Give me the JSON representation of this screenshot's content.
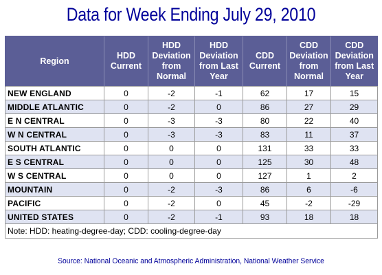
{
  "title": "Data for Week Ending July 29, 2010",
  "table": {
    "headers": [
      "Region",
      "HDD Current",
      "HDD Deviation from Normal",
      "HDD Deviation from Last Year",
      "CDD Current",
      "CDD Deviation from Normal",
      "CDD Deviation from Last Year"
    ],
    "rows": [
      [
        "NEW ENGLAND",
        "0",
        "-2",
        "-1",
        "62",
        "17",
        "15"
      ],
      [
        "MIDDLE ATLANTIC",
        "0",
        "-2",
        "0",
        "86",
        "27",
        "29"
      ],
      [
        "E N CENTRAL",
        "0",
        "-3",
        "-3",
        "80",
        "22",
        "40"
      ],
      [
        "W N CENTRAL",
        "0",
        "-3",
        "-3",
        "83",
        "11",
        "37"
      ],
      [
        "SOUTH ATLANTIC",
        "0",
        "0",
        "0",
        "131",
        "33",
        "33"
      ],
      [
        "E S CENTRAL",
        "0",
        "0",
        "0",
        "125",
        "30",
        "48"
      ],
      [
        "W S CENTRAL",
        "0",
        "0",
        "0",
        "127",
        "1",
        "2"
      ],
      [
        "MOUNTAIN",
        "0",
        "-2",
        "-3",
        "86",
        "6",
        "-6"
      ],
      [
        "PACIFIC",
        "0",
        "-2",
        "0",
        "45",
        "-2",
        "-29"
      ],
      [
        "UNITED STATES",
        "0",
        "-2",
        "-1",
        "93",
        "18",
        "18"
      ]
    ],
    "note": "Note: HDD: heating-degree-day; CDD: cooling-degree-day"
  },
  "source": "Source:  National Oceanic and Atmospheric Administration, National Weather Service",
  "colors": {
    "title": "#000099",
    "header_bg": "#5b5e96",
    "row_alt_bg": "#dfe3f2"
  }
}
